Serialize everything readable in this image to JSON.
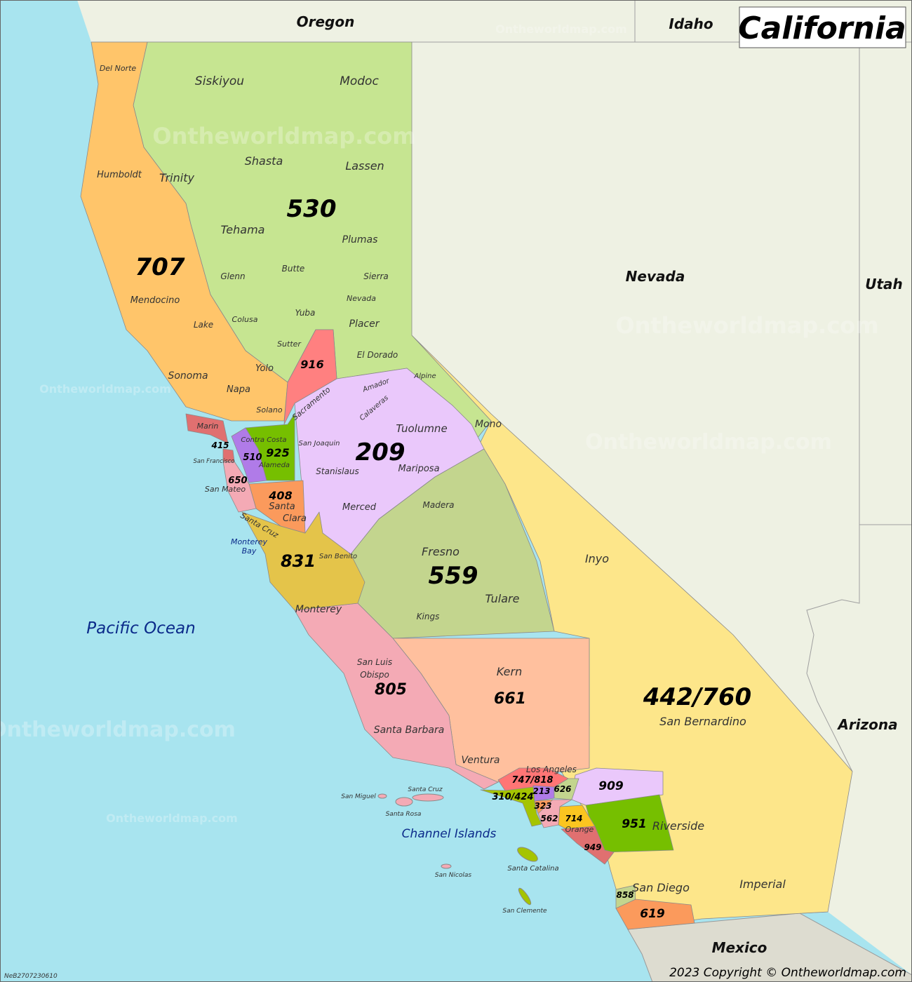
{
  "title": "California",
  "copyright": "2023 Copyright © Ontheworldmap.com",
  "code": "NeB2707230610",
  "watermark": "Ontheworldmap.com",
  "colors": {
    "ocean": "#a8e4ef",
    "neighbor": "#eef1e3",
    "mexico": "#dddcd0",
    "530": "#c6e591",
    "707": "#ffc56a",
    "916": "#ff8080",
    "209": "#eac8fb",
    "559": "#c3d58e",
    "442_760": "#fde68a",
    "661": "#ffc09e",
    "805": "#f4aab5",
    "831": "#e4c44a",
    "408": "#fb9a5c",
    "925": "#76bf00",
    "510": "#b07be8",
    "415": "#e07070",
    "650": "#f4aab5",
    "747_818": "#ff7575",
    "310_424": "#a5c400",
    "213": "#b07be8",
    "626": "#c3d58e",
    "323": "#fb9a5c",
    "562": "#f4aab5",
    "714": "#fbc520",
    "949": "#e07070",
    "909": "#eac8fb",
    "951": "#76bf00",
    "858": "#c3d58e",
    "619": "#fb9a5c"
  },
  "neighbors": [
    "Oregon",
    "Idaho",
    "Nevada",
    "Utah",
    "Arizona",
    "Mexico"
  ],
  "water": [
    "Pacific Ocean",
    "Channel Islands",
    "Monterey",
    "Bay"
  ],
  "area_codes": [
    "530",
    "707",
    "916",
    "209",
    "925",
    "510",
    "415",
    "650",
    "408",
    "831",
    "559",
    "805",
    "661",
    "442/760",
    "747/818",
    "310/424",
    "213",
    "626",
    "323",
    "562",
    "714",
    "949",
    "909",
    "951",
    "858",
    "619"
  ],
  "counties": [
    "Del Norte",
    "Siskiyou",
    "Modoc",
    "Humboldt",
    "Trinity",
    "Shasta",
    "Lassen",
    "Tehama",
    "Plumas",
    "Glenn",
    "Butte",
    "Sierra",
    "Mendocino",
    "Nevada",
    "Yuba",
    "Lake",
    "Colusa",
    "Placer",
    "Sutter",
    "El Dorado",
    "Yolo",
    "Sonoma",
    "Napa",
    "Solano",
    "Alpine",
    "Amador",
    "Calaveras",
    "Sacramento",
    "Tuolumne",
    "Mono",
    "Marin",
    "Contra Costa",
    "San Joaquin",
    "Alameda",
    "San Francisco",
    "Stanislaus",
    "Mariposa",
    "San Mateo",
    "Santa",
    "Clara",
    "Santa Cruz",
    "Merced",
    "Madera",
    "San Benito",
    "Fresno",
    "Inyo",
    "Tulare",
    "Monterey",
    "Kings",
    "San Luis",
    "Obispo",
    "Kern",
    "San Bernardino",
    "Santa Barbara",
    "Ventura",
    "Los Angeles",
    "Orange",
    "Riverside",
    "San Diego",
    "Imperial",
    "San Miguel",
    "Santa Cruz",
    "Santa Rosa",
    "San Nicolas",
    "Santa Catalina",
    "San Clemente"
  ]
}
